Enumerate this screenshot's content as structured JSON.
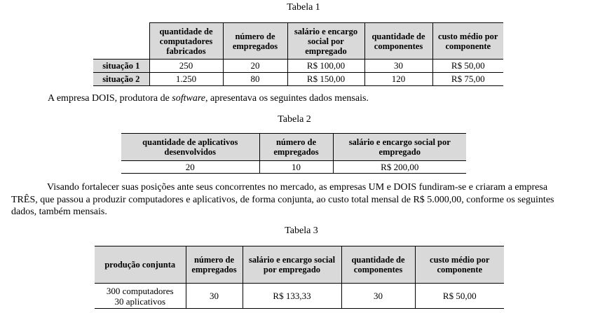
{
  "table1": {
    "caption": "Tabela 1",
    "headers": [
      "",
      "quantidade de computadores fabricados",
      "número de empregados",
      "salário e encargo social por empregado",
      "quantidade de componentes",
      "custo médio por componente"
    ],
    "rows": [
      {
        "label": "situação 1",
        "cells": [
          "250",
          "20",
          "R$ 100,00",
          "30",
          "R$ 50,00"
        ]
      },
      {
        "label": "situação 2",
        "cells": [
          "1.250",
          "80",
          "R$ 150,00",
          "120",
          "R$ 75,00"
        ]
      }
    ]
  },
  "para1": {
    "before": "A empresa DOIS, produtora de ",
    "italic": "software",
    "after": ", apresentava os seguintes dados mensais."
  },
  "table2": {
    "caption": "Tabela 2",
    "headers": [
      "quantidade de aplicativos desenvolvidos",
      "número de empregados",
      "salário e encargo social por empregado"
    ],
    "rows": [
      [
        "20",
        "10",
        "R$ 200,00"
      ]
    ]
  },
  "para2": {
    "line1": "Visando fortalecer suas posições ante seus concorrentes no mercado, as empresas UM e DOIS fundiram-se e criaram a empresa",
    "line2": "TRÊS, que passou a produzir computadores e aplicativos, de forma conjunta, ao custo total mensal de R$ 5.000,00, conforme os seguintes",
    "line3": "dados, também mensais."
  },
  "table3": {
    "caption": "Tabela 3",
    "headers": [
      "produção conjunta",
      "número de empregados",
      "salário e encargo social por empregado",
      "quantidade de componentes",
      "custo médio por componente"
    ],
    "rows": [
      {
        "line1": "300 computadores",
        "line2": "30 aplicativos",
        "cells": [
          "30",
          "R$ 133,33",
          "30",
          "R$ 50,00"
        ]
      }
    ]
  }
}
